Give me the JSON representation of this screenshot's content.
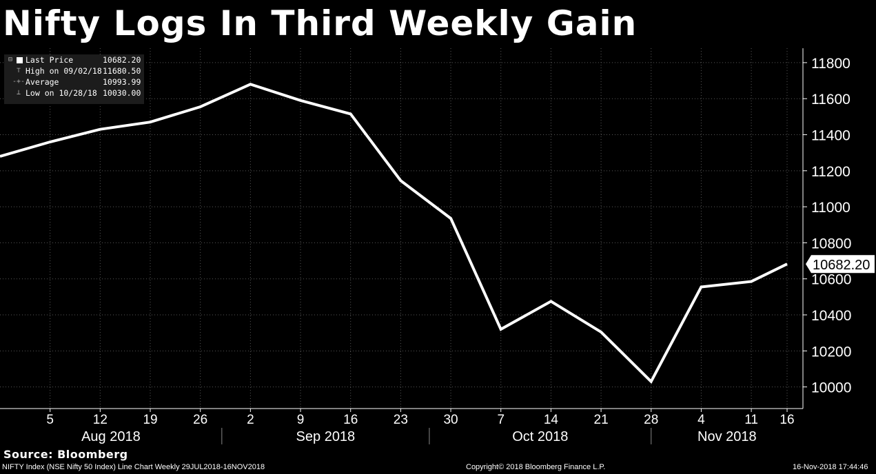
{
  "title": "Nifty Logs In Third Weekly Gain",
  "legend": {
    "rows": [
      {
        "label": "Last Price",
        "value": "10682.20"
      },
      {
        "label": "High on 09/02/18",
        "value": "11680.50"
      },
      {
        "label": "Average",
        "value": "10993.99"
      },
      {
        "label": "Low on 10/28/18",
        "value": "10030.00"
      }
    ]
  },
  "source": "Source: Bloomberg",
  "footer": {
    "left": "NIFTY Index (NSE Nifty 50 Index) Line Chart  Weekly 29JUL2018-16NOV2018",
    "center": "Copyright© 2018 Bloomberg Finance L.P.",
    "right": "16-Nov-2018 17:44:46"
  },
  "chart_data": {
    "type": "line",
    "x": [
      "2018-07-29",
      "2018-08-05",
      "2018-08-12",
      "2018-08-19",
      "2018-08-26",
      "2018-09-02",
      "2018-09-09",
      "2018-09-16",
      "2018-09-23",
      "2018-09-30",
      "2018-10-07",
      "2018-10-14",
      "2018-10-21",
      "2018-10-28",
      "2018-11-04",
      "2018-11-11",
      "2018-11-16"
    ],
    "series": [
      {
        "values": [
          11280,
          11360,
          11430,
          11470,
          11555,
          11680,
          11590,
          11515,
          11145,
          10935,
          10320,
          10475,
          10305,
          10030,
          10555,
          10585,
          10682.2
        ]
      }
    ],
    "x_tick_labels": [
      "5",
      "12",
      "19",
      "26",
      "2",
      "9",
      "16",
      "23",
      "30",
      "7",
      "14",
      "21",
      "28",
      "4",
      "11",
      "16"
    ],
    "month_labels": [
      "Aug 2018",
      "Sep 2018",
      "Oct 2018",
      "Nov 2018"
    ],
    "y_ticks": [
      10000,
      10200,
      10400,
      10600,
      10800,
      11000,
      11200,
      11400,
      11600,
      11800
    ],
    "ylim": [
      9880,
      11880
    ],
    "last_value_label": "10682.20",
    "grid": true,
    "line_color": "#ffffff",
    "background": "#000000"
  }
}
